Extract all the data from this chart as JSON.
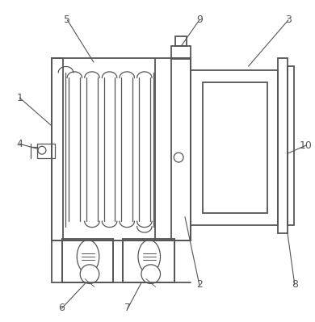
{
  "bg_color": "#ffffff",
  "line_color": "#555555",
  "lw": 1.3,
  "thin_lw": 0.9,
  "figsize": [
    3.9,
    3.99
  ],
  "dpi": 100
}
